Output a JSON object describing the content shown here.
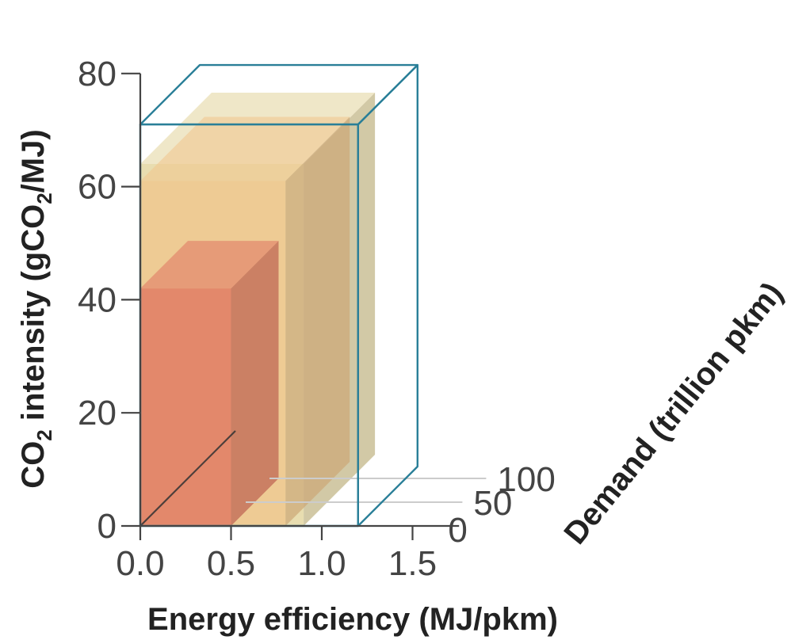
{
  "chart_data": {
    "type": "3d-box",
    "xlabel": "Energy efficiency (MJ/pkm)",
    "ylabel": {
      "prefix": "CO",
      "sub1": "2",
      "mid": " intensity (gCO",
      "sub2": "2",
      "suffix": "/MJ)"
    },
    "zlabel": "Demand (trillion pkm)",
    "x_ticks": [
      "0.0",
      "0.5",
      "1.0",
      "1.5"
    ],
    "y_ticks": [
      "0",
      "20",
      "40",
      "60",
      "80"
    ],
    "z_ticks": [
      "0",
      "50",
      "100"
    ],
    "xlim": [
      0,
      1.6
    ],
    "ylim": [
      0,
      80
    ],
    "zlim": [
      0,
      150
    ],
    "boxes": [
      {
        "energy_efficiency": 1.2,
        "co2_intensity": 71,
        "demand": 125,
        "style": "outline"
      },
      {
        "energy_efficiency": 0.9,
        "co2_intensity": 64,
        "demand": 150,
        "style": "solid",
        "color": "#e2d49a"
      },
      {
        "energy_efficiency": 0.8,
        "co2_intensity": 61,
        "demand": 135,
        "style": "solid",
        "color": "#f0c58c"
      },
      {
        "energy_efficiency": 0.5,
        "co2_intensity": 42,
        "demand": 100,
        "style": "solid",
        "color": "#e07560"
      }
    ],
    "trend_line": {
      "from": [
        0,
        0,
        0
      ],
      "to": [
        0,
        0,
        200
      ]
    },
    "colors": {
      "outline": "#2a7f98",
      "axis": "#444444",
      "gridline": "#cccccc",
      "trend": "#333333"
    }
  }
}
